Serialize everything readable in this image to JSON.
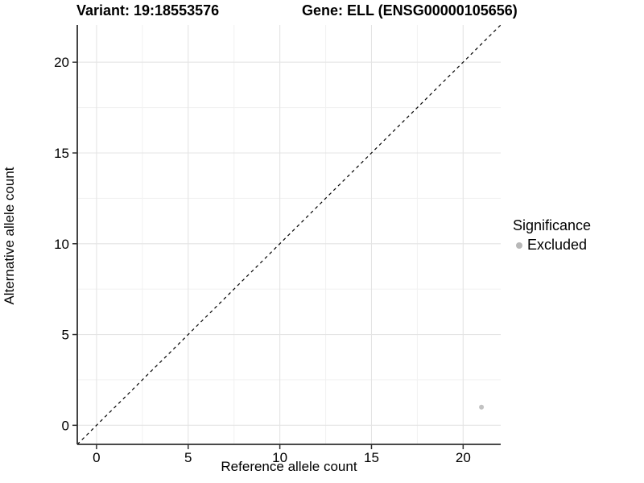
{
  "header": {
    "variant_title": "Variant: 19:18553576",
    "gene_title": "Gene: ELL (ENSG00000105656)"
  },
  "chart_data": {
    "type": "scatter",
    "title_left": "Variant: 19:18553576",
    "title_right": "Gene: ELL (ENSG00000105656)",
    "xlabel": "Reference allele count",
    "ylabel": "Alternative allele count",
    "xlim": [
      -1.05,
      22.05
    ],
    "ylim": [
      -1.05,
      22.05
    ],
    "x_ticks": [
      0,
      5,
      10,
      15,
      20
    ],
    "y_ticks": [
      0,
      5,
      10,
      15,
      20
    ],
    "x_minor_gridlines": [
      2.5,
      7.5,
      12.5,
      17.5
    ],
    "y_minor_gridlines": [
      2.5,
      7.5,
      12.5,
      17.5
    ],
    "grid": "major and minor, light gray on white panel",
    "reference_line": {
      "kind": "identity",
      "slope": 1,
      "intercept": 0,
      "style": "dashed",
      "color": "#000000"
    },
    "series": [
      {
        "name": "Excluded",
        "color": "#c2c2c2",
        "points": [
          {
            "x": 21,
            "y": 1
          }
        ]
      }
    ],
    "legend": {
      "title": "Significance",
      "position": "right",
      "items": [
        {
          "label": "Excluded",
          "color": "#b8b8b8"
        }
      ]
    },
    "style_colors": {
      "axis_line": "#2f2f2f",
      "major_grid": "#e4e4e4",
      "minor_grid": "#f1f1f1",
      "tick_label": "#000000"
    }
  }
}
